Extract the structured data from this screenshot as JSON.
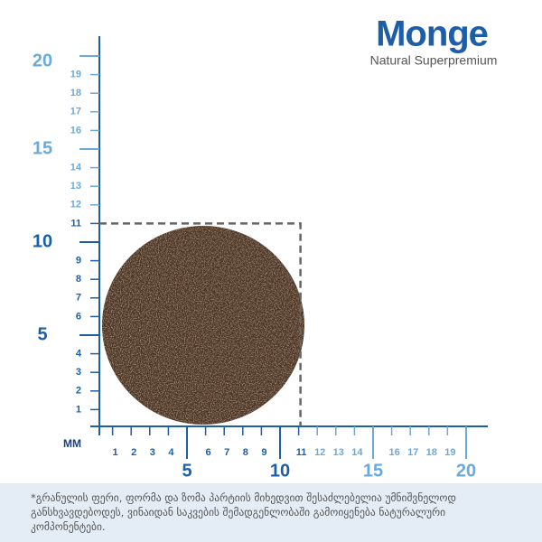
{
  "logo": {
    "brand": "Monge",
    "tagline": "Natural Superpremium"
  },
  "ruler": {
    "unit": "MM",
    "small_labels": [
      1,
      2,
      3,
      4,
      6,
      7,
      8,
      9,
      11,
      12,
      13,
      14,
      16,
      17,
      18,
      19
    ],
    "major_labels": [
      5,
      10,
      15,
      20
    ],
    "box_size": 11,
    "dark_color": "#1a5fa8",
    "light_color": "#6aaad8"
  },
  "footnote": "*გრანულის ფერი, ფორმა და ზომა პარტიის მიხედვით შესაძლებელია უმნიშვნელოდ განსხვავდებოდეს,  ვინაიდან საკვების შემადგენლობაში გამოიყენება ნატურალური კომპონენტები."
}
